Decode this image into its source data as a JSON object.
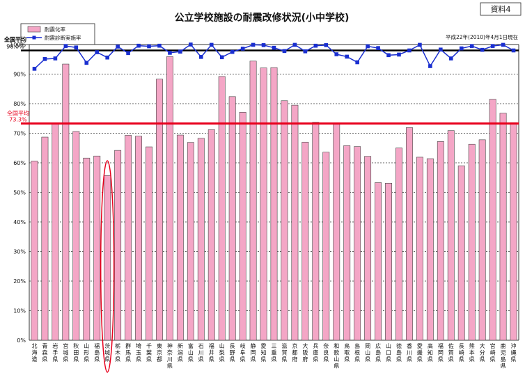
{
  "page": {
    "title": "公立学校施設の耐震改修状況(小中学校)",
    "doc_label": "資料4",
    "date_note": "平成22年(2010)年4月1日現在"
  },
  "chart_data": {
    "type": "bar",
    "title": "公立学校施設の耐震改修状況(小中学校)",
    "ylim": [
      0,
      100
    ],
    "y_ticks": [
      "0%",
      "10%",
      "20%",
      "30%",
      "40%",
      "50%",
      "60%",
      "70%",
      "80%",
      "90%",
      "100%"
    ],
    "grid": true,
    "legend": "top-left",
    "colors": {
      "bar": "#f4a6c6",
      "bar_stroke": "#444444",
      "line": "#1a2fd0",
      "avg_bar": "#e8001c",
      "avg_line": "#000000",
      "highlight": "#e8001c"
    },
    "categories": [
      "北海道",
      "青森県",
      "岩手県",
      "宮城県",
      "秋田県",
      "山形県",
      "福島県",
      "茨城県",
      "栃木県",
      "群馬県",
      "埼玉県",
      "千葉県",
      "東京都",
      "神奈川県",
      "新潟県",
      "富山県",
      "石川県",
      "福井県",
      "山梨県",
      "長野県",
      "岐阜県",
      "静岡県",
      "愛知県",
      "三重県",
      "滋賀県",
      "京都府",
      "大阪府",
      "兵庫県",
      "奈良県",
      "和歌山県",
      "鳥取県",
      "島根県",
      "岡山県",
      "広島県",
      "山口県",
      "徳島県",
      "香川県",
      "愛媛県",
      "高知県",
      "福岡県",
      "佐賀県",
      "長崎県",
      "熊本県",
      "大分県",
      "宮崎県",
      "鹿児島県",
      "沖縄県"
    ],
    "series": [
      {
        "name": "耐震化率",
        "kind": "bar",
        "values": [
          60.6,
          68.7,
          73.3,
          93.4,
          70.6,
          61.6,
          62.3,
          55.7,
          64.2,
          69.3,
          69.0,
          65.4,
          88.3,
          95.9,
          69.4,
          66.9,
          68.3,
          71.2,
          89.2,
          82.4,
          77.1,
          94.4,
          92.1,
          92.2,
          81.0,
          79.5,
          67.0,
          73.7,
          63.6,
          73.0,
          65.8,
          65.5,
          62.2,
          53.3,
          53.1,
          65.0,
          71.9,
          61.9,
          61.4,
          67.2,
          70.9,
          59.0,
          66.3,
          67.8,
          81.5,
          76.8,
          73.6
        ]
      },
      {
        "name": "耐震診断実施率",
        "kind": "line",
        "values": [
          91.8,
          95.1,
          95.3,
          99.5,
          99.0,
          93.8,
          97.4,
          95.6,
          99.3,
          97.1,
          99.6,
          99.4,
          99.6,
          97.2,
          97.6,
          100.0,
          95.8,
          99.9,
          95.7,
          97.5,
          98.6,
          99.9,
          99.8,
          98.9,
          97.8,
          99.9,
          97.7,
          99.6,
          99.8,
          96.7,
          95.9,
          94.0,
          99.4,
          98.8,
          96.4,
          96.6,
          98.0,
          99.9,
          92.7,
          98.3,
          95.3,
          98.7,
          99.5,
          98.2,
          99.5,
          99.9,
          98.0
        ]
      }
    ],
    "annotations": [
      {
        "label": "全国平均",
        "value_text": "98.0%",
        "value": 98.0,
        "series": "耐震診断実施率"
      },
      {
        "label": "全国平均",
        "value_text": "73.3%",
        "value": 73.3,
        "series": "耐震化率"
      }
    ],
    "highlighted_category": "茨城県"
  }
}
